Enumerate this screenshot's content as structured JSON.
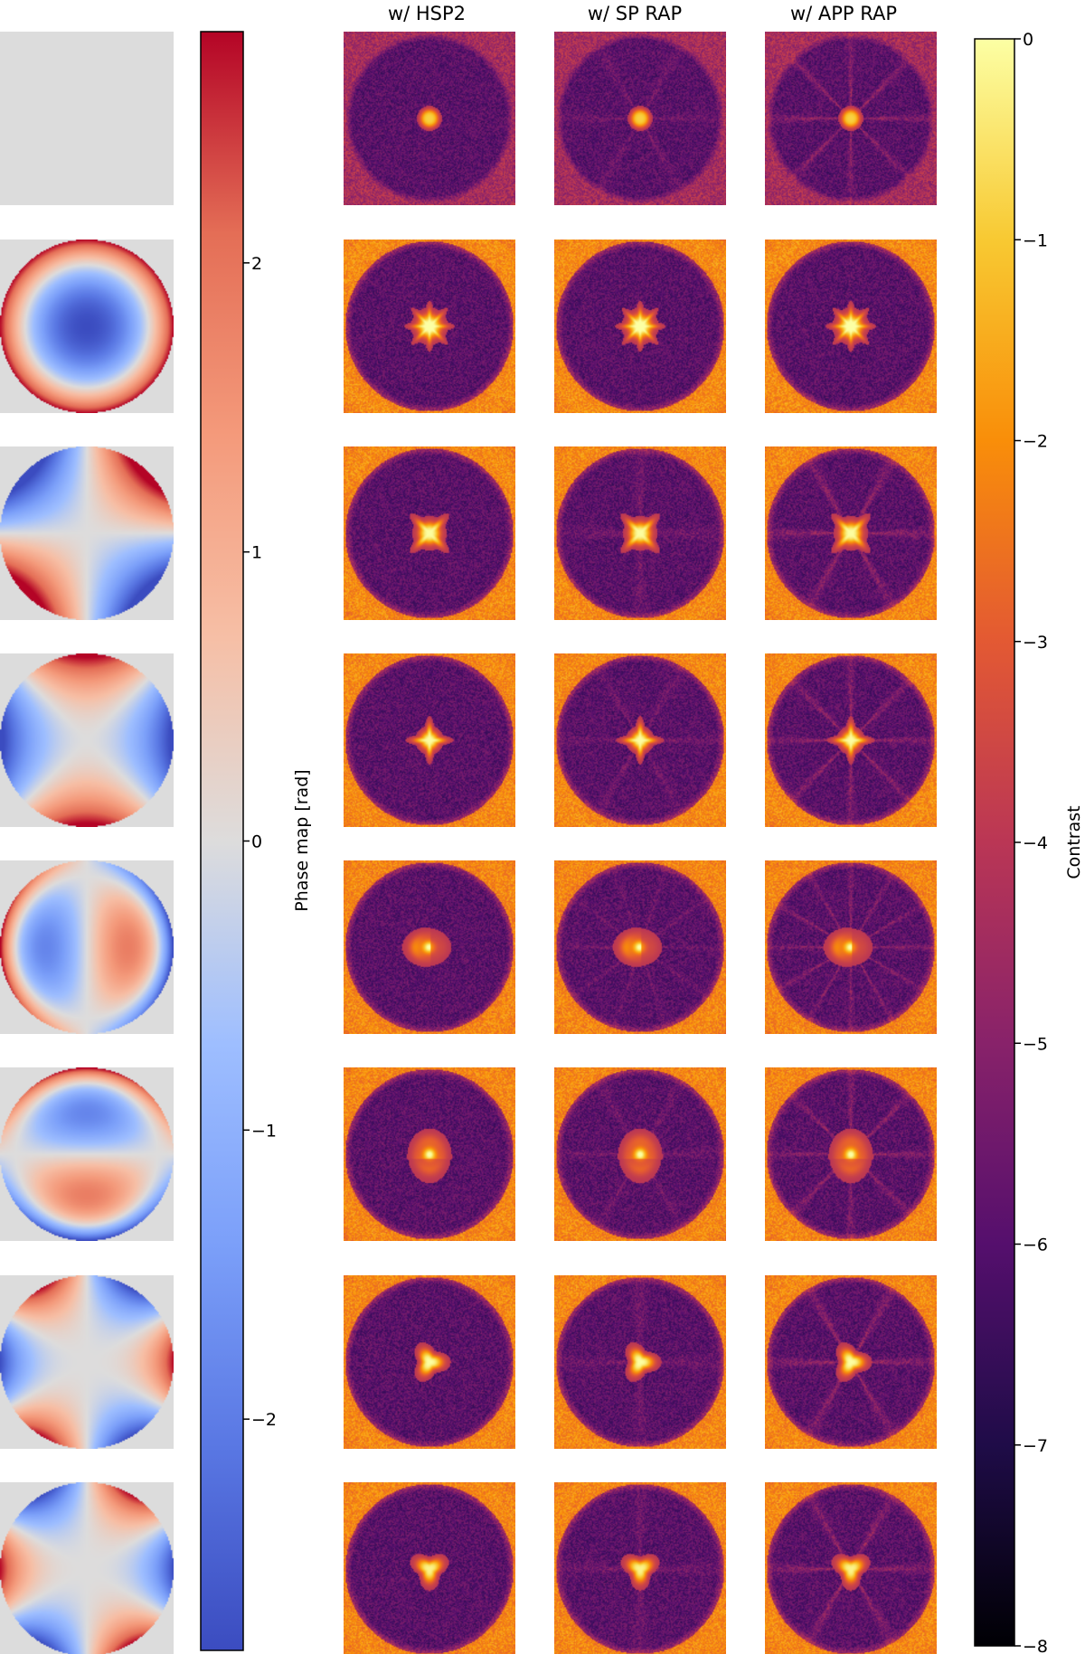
{
  "figure": {
    "column_titles": [
      "w/ HSP2",
      "w/ SP RAP",
      "w/ APP RAP"
    ],
    "rows": [
      {
        "phase": "none",
        "core": "dot",
        "core_rot": 0,
        "halo": 0.05,
        "spokes_app": 8,
        "core_strength": 0.75
      },
      {
        "phase": "defocus",
        "core": "star",
        "core_rot": 0,
        "halo": 0.9,
        "spokes_app": 0,
        "core_strength": 1.0
      },
      {
        "phase": "astig_45",
        "core": "x",
        "core_rot": 45,
        "halo": 0.85,
        "spokes_app": 6,
        "core_strength": 0.95
      },
      {
        "phase": "astig_0",
        "core": "plus",
        "core_rot": 0,
        "halo": 0.85,
        "spokes_app": 8,
        "core_strength": 0.95
      },
      {
        "phase": "coma_x",
        "core": "fan_left",
        "core_rot": 0,
        "halo": 0.75,
        "spokes_app": 12,
        "core_strength": 1.0
      },
      {
        "phase": "coma_y",
        "core": "fan_up",
        "core_rot": 0,
        "halo": 0.8,
        "spokes_app": 8,
        "core_strength": 1.0
      },
      {
        "phase": "trefoil_a",
        "core": "blob",
        "core_rot": 0,
        "halo": 0.8,
        "spokes_app": 6,
        "core_strength": 0.95
      },
      {
        "phase": "trefoil_b",
        "core": "blob",
        "core_rot": 30,
        "halo": 0.8,
        "spokes_app": 6,
        "core_strength": 0.9
      }
    ],
    "phase_colorbar": {
      "label": "Phase map [rad]",
      "range": [
        -2.8,
        2.8
      ],
      "ticks": [
        2,
        1,
        0,
        -1,
        -2
      ],
      "tick_labels": [
        "2",
        "1",
        "0",
        "−1",
        "−2"
      ],
      "cmap": "coolwarm"
    },
    "contrast_colorbar": {
      "label": "Contrast",
      "range": [
        -8,
        0
      ],
      "ticks": [
        0,
        -1,
        -2,
        -3,
        -4,
        -5,
        -6,
        -7,
        -8
      ],
      "tick_labels": [
        "0",
        "−1",
        "−2",
        "−3",
        "−4",
        "−5",
        "−6",
        "−7",
        "−8"
      ],
      "cmap": "inferno"
    },
    "colors": {
      "mask_gray": "#dcdcdc",
      "coolwarm_low": "#3b4cc0",
      "coolwarm_mid": "#dddddd",
      "coolwarm_high": "#b40426",
      "inferno_low": "#000004",
      "inferno_high": "#fcffa4"
    }
  }
}
